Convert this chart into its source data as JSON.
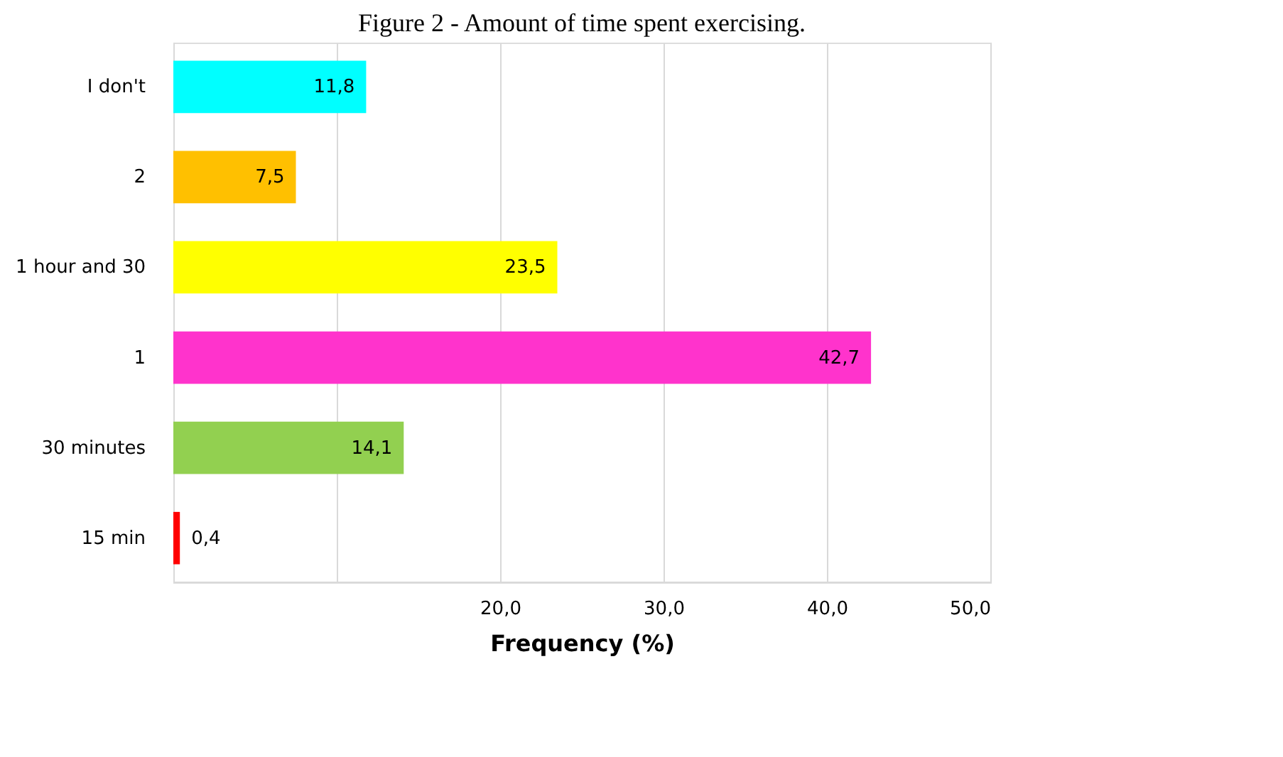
{
  "chart_data": {
    "type": "bar",
    "orientation": "horizontal",
    "title": "Figure 2 - Amount of time spent exercising.",
    "xlabel": "Frequency (%)",
    "categories": [
      "I don't",
      "2",
      "1 hour and 30",
      "1",
      "30 minutes",
      "15 min"
    ],
    "values": [
      11.8,
      7.5,
      23.5,
      42.7,
      14.1,
      0.4
    ],
    "colors": [
      "#00ffff",
      "#ffc000",
      "#ffff00",
      "#ff33cc",
      "#92d050",
      "#ff0000"
    ],
    "value_labels": [
      "11,8",
      "7,5",
      "23,5",
      "42,7",
      "14,1",
      "0,4"
    ],
    "xlim": [
      0,
      50
    ],
    "xticks": [
      {
        "value": 0,
        "label": null
      },
      {
        "value": 10,
        "label": null
      },
      {
        "value": 20,
        "label": "20,0"
      },
      {
        "value": 30,
        "label": "30,0"
      },
      {
        "value": 40,
        "label": "40,0"
      },
      {
        "value": 50,
        "label": "50,0"
      }
    ],
    "grid": "x"
  }
}
